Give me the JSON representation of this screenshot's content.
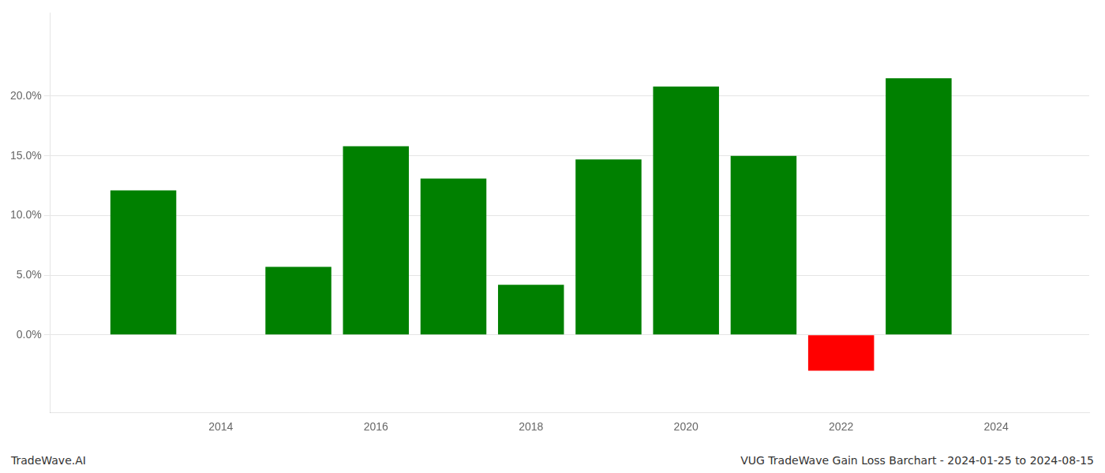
{
  "chart_data": {
    "type": "bar",
    "x": [
      2013,
      2015,
      2016,
      2017,
      2018,
      2019,
      2020,
      2021,
      2022,
      2023
    ],
    "values": [
      0.121,
      0.057,
      0.158,
      0.131,
      0.042,
      0.147,
      0.208,
      0.15,
      -0.03,
      0.215
    ],
    "colors": [
      "#008000",
      "#008000",
      "#008000",
      "#008000",
      "#008000",
      "#008000",
      "#008000",
      "#008000",
      "#ff0000",
      "#008000"
    ],
    "xlim": [
      2011.8,
      2025.2
    ],
    "xticks": [
      2014,
      2016,
      2018,
      2020,
      2022,
      2024
    ],
    "ylim": [
      -0.065,
      0.27
    ],
    "yticks": [
      {
        "value": 0.0,
        "label": "0.0%"
      },
      {
        "value": 0.05,
        "label": "5.0%"
      },
      {
        "value": 0.1,
        "label": "10.0%"
      },
      {
        "value": 0.15,
        "label": "15.0%"
      },
      {
        "value": 0.2,
        "label": "20.0%"
      }
    ],
    "grid": true,
    "annotations": [
      "TradeWave.AI",
      "VUG TradeWave Gain Loss Barchart - 2024-01-25 to 2024-08-15"
    ]
  }
}
